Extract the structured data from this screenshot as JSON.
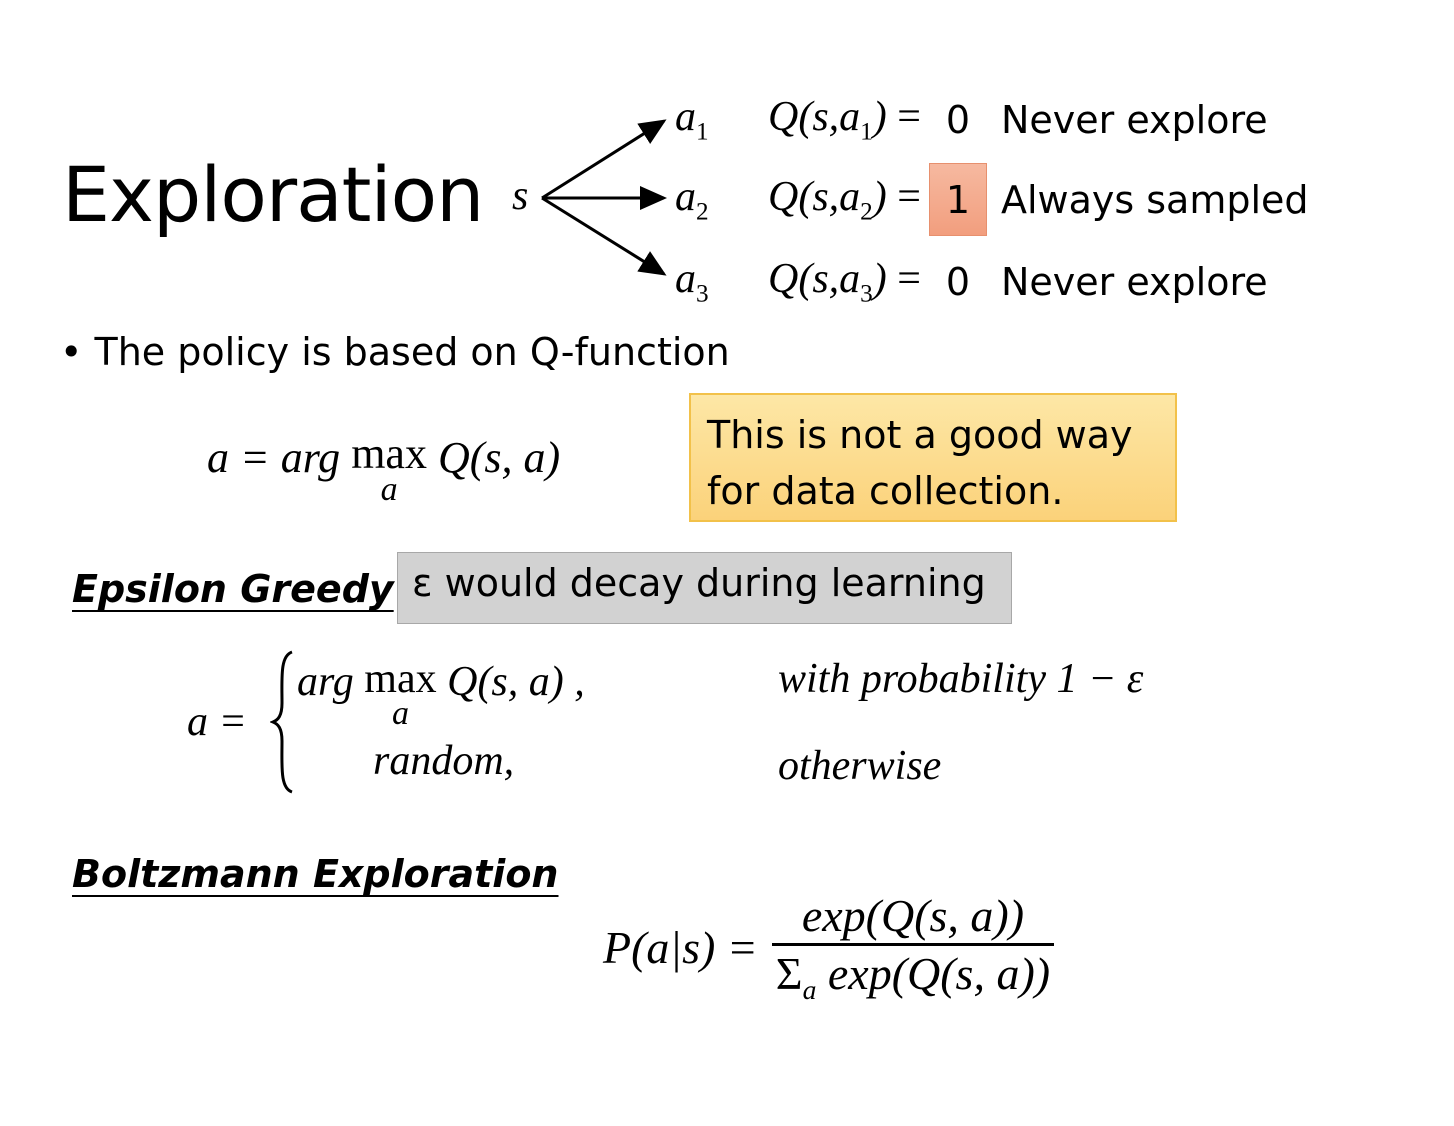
{
  "title": "Exploration",
  "tree": {
    "state": "s",
    "actions": [
      {
        "action": "a",
        "index": "1",
        "q_prefix": "Q(s,a",
        "q_suffix": ")",
        "equals": "=",
        "value": "0",
        "description": "Never explore",
        "highlighted": false
      },
      {
        "action": "a",
        "index": "2",
        "q_prefix": "Q(s,a",
        "q_suffix": ")",
        "equals": "=",
        "value": "1",
        "description": "Always sampled",
        "highlighted": true
      },
      {
        "action": "a",
        "index": "3",
        "q_prefix": "Q(s,a",
        "q_suffix": ")",
        "equals": "=",
        "value": "0",
        "description": "Never explore",
        "highlighted": false
      }
    ],
    "highlight_color": "#f4a888"
  },
  "bullet": "The policy is based on Q-function",
  "greedy_formula": {
    "lhs": "a = arg",
    "op": "max",
    "sub": "a",
    "rhs": "Q(s, a)"
  },
  "note_yellow": {
    "line1": "This is not a good way",
    "line2": "for data collection.",
    "color": "#fcd98a"
  },
  "epsilon_greedy": {
    "heading": "Epsilon Greedy",
    "note": "ε would decay during learning",
    "note_color": "#d2d2d2",
    "lhs": "a =",
    "case1": {
      "expr_prefix": "arg",
      "op": "max",
      "sub": "a",
      "expr_suffix": "Q(s, a) ,",
      "condition": "with probability 1 − ε"
    },
    "case2": {
      "expr": "random,",
      "condition": "otherwise"
    }
  },
  "boltzmann": {
    "heading": "Boltzmann Exploration",
    "lhs": "P(a|s) =",
    "numerator": "exp(Q(s, a))",
    "denominator_sum": "Σ",
    "denominator_sub": "a",
    "denominator": "exp(Q(s, a))"
  }
}
